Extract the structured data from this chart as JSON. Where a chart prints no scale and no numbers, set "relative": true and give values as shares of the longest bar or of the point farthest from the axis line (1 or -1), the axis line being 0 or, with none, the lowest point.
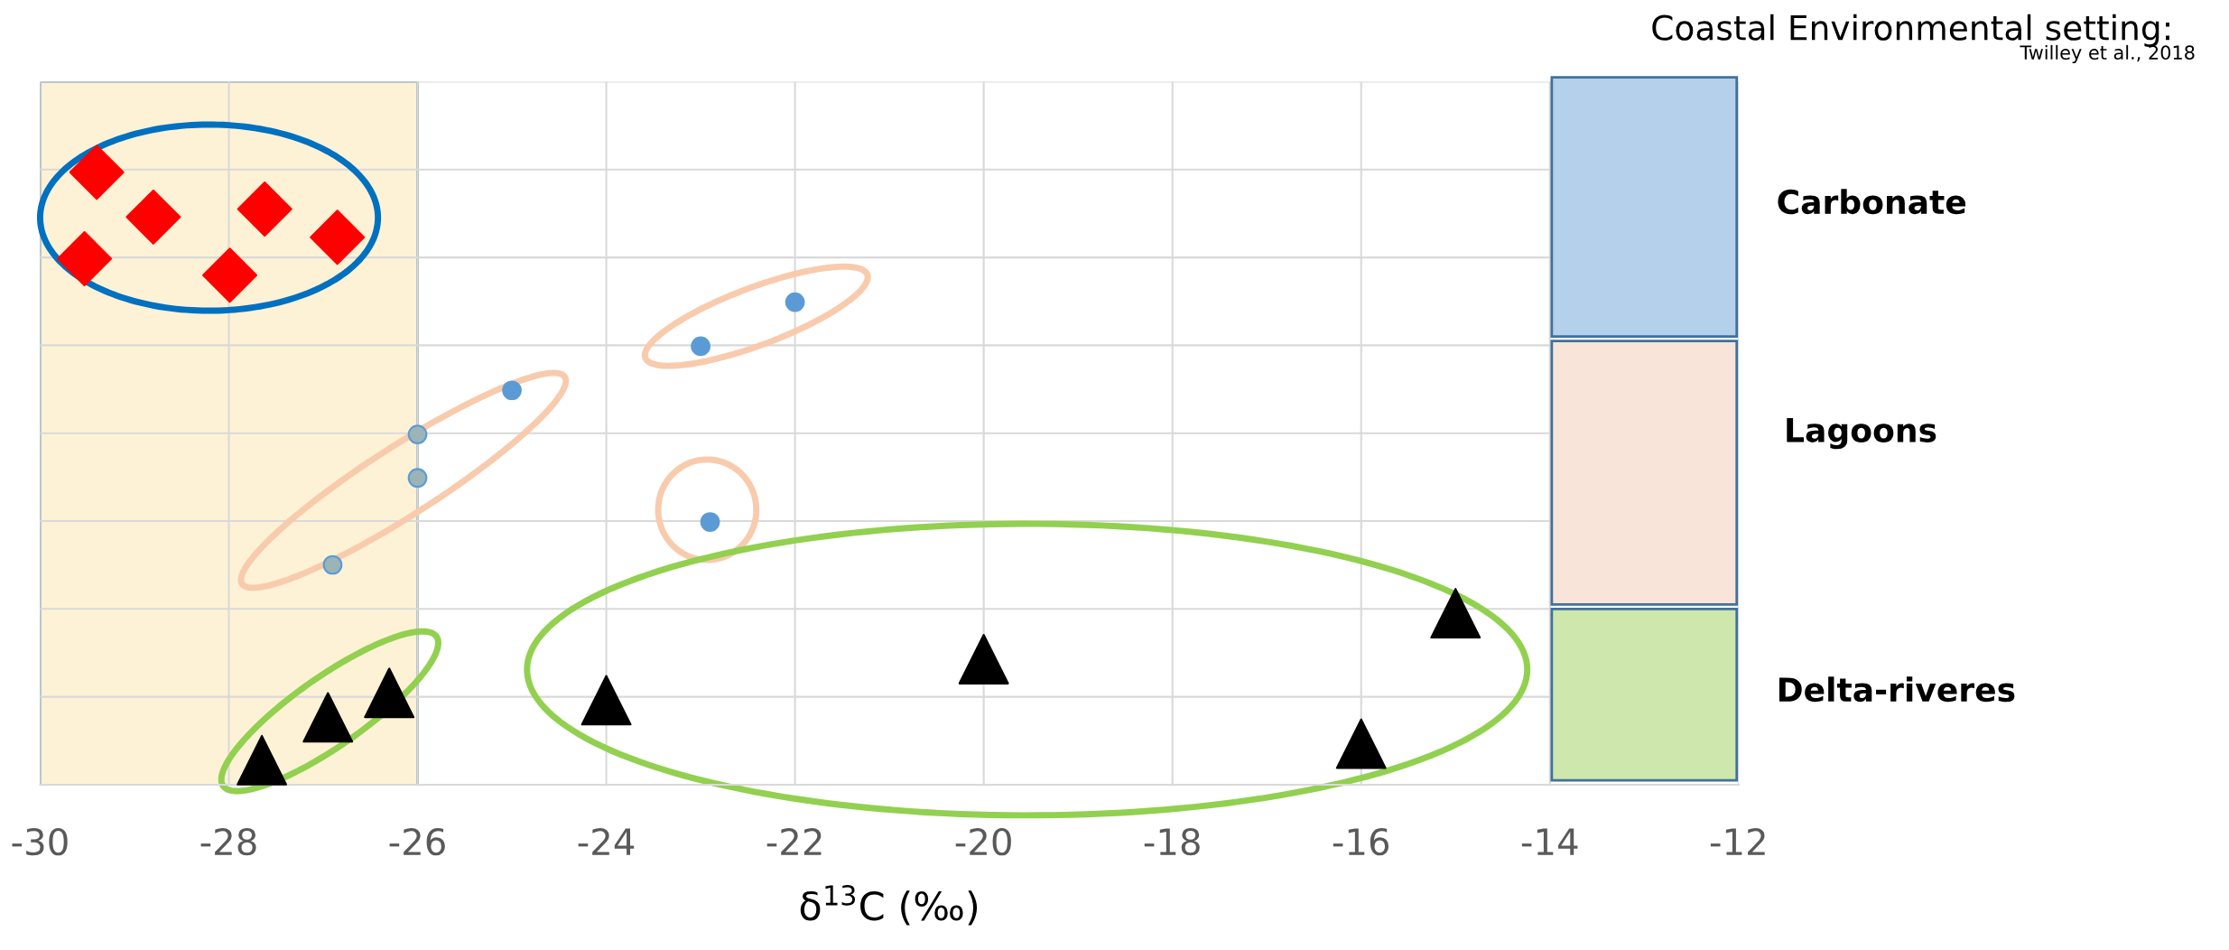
{
  "chart_data": {
    "type": "scatter",
    "title": "Coastal Environmental setting:",
    "xlabel": "δ$^{13}$C (‰)",
    "relative": true,
    "xlim": [
      -30,
      -12
    ],
    "xticks": [
      -30,
      -28,
      -26,
      -24,
      -22,
      -20,
      -18,
      -16,
      -14,
      -12
    ],
    "grid": true,
    "legend": false,
    "series": [
      {
        "marker": "diamond",
        "color": "#ff0000",
        "x": [
          -29.4,
          -28.8,
          -27.62,
          -26.85,
          -29.53,
          -27.99
        ],
        "values": [
          1.0,
          0.927,
          0.94,
          0.894,
          0.859,
          0.832
        ]
      },
      {
        "marker": "circle",
        "color": "#5b9bd5",
        "colors": [
          "#5b9bd5",
          "#9ab4b8",
          "#9ab4b8",
          "#9ab4b8",
          "#5b9bd5",
          "#5b9bd5",
          "#5b9bd5"
        ],
        "x": [
          -25.0,
          -26.0,
          -26.0,
          -26.9,
          -23.0,
          -22.0,
          -22.9
        ],
        "values": [
          0.644,
          0.572,
          0.501,
          0.359,
          0.716,
          0.788,
          0.429
        ]
      },
      {
        "marker": "triangle",
        "color": "#000000",
        "x": [
          -27.65,
          -26.95,
          -26.3,
          -24.0,
          -20.0,
          -16.0,
          -15.0
        ],
        "values": [
          0.04,
          0.11,
          0.15,
          0.138,
          0.205,
          0.067,
          0.28
        ]
      }
    ],
    "bands": [
      {
        "axis": "x",
        "from": -30,
        "to": -26,
        "color": "#fdf2d5"
      }
    ],
    "annotations": [
      "Twilley et al., 2018",
      "Carbonate",
      "Lagoons",
      "Delta-riveres"
    ]
  }
}
